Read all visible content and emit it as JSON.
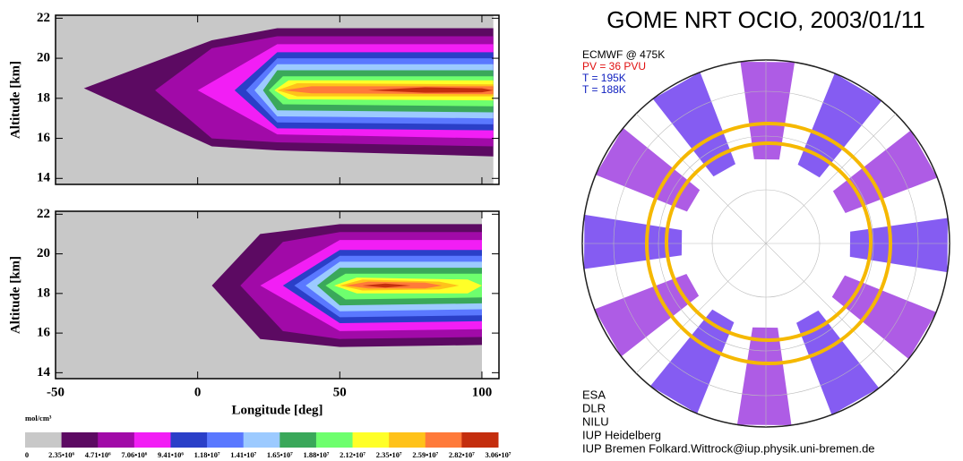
{
  "chart_data": [
    {
      "type": "contour",
      "ylabel": "Altitude [km]",
      "xlim": [
        -50,
        106
      ],
      "ylim": [
        13.7,
        22.15
      ],
      "xticks": [
        -50,
        0,
        50,
        100
      ],
      "xticklabels": false,
      "yticks": [
        14,
        16,
        18,
        20,
        22
      ],
      "contours": [
        {
          "level": 0,
          "points": [
            [
              -50,
              13.7
            ],
            [
              -50,
              22.15
            ],
            [
              104,
              22.15
            ],
            [
              104,
              13.7
            ]
          ]
        },
        {
          "level": 2350000,
          "points": [
            [
              -40,
              18.5
            ],
            [
              5,
              20.9
            ],
            [
              28,
              21.5
            ],
            [
              104,
              21.5
            ],
            [
              104,
              15.1
            ],
            [
              28,
              15.4
            ],
            [
              5,
              15.6
            ]
          ]
        },
        {
          "level": 4710000,
          "points": [
            [
              -15,
              18.4
            ],
            [
              5,
              20.5
            ],
            [
              28,
              21.1
            ],
            [
              104,
              21.1
            ],
            [
              104,
              15.6
            ],
            [
              28,
              15.8
            ],
            [
              5,
              16.0
            ]
          ]
        },
        {
          "level": 7060000,
          "points": [
            [
              0,
              18.4
            ],
            [
              28,
              20.7
            ],
            [
              104,
              20.7
            ],
            [
              104,
              16.0
            ],
            [
              28,
              16.2
            ]
          ]
        },
        {
          "level": 9410000,
          "points": [
            [
              13,
              18.4
            ],
            [
              28,
              20.3
            ],
            [
              104,
              20.3
            ],
            [
              104,
              16.4
            ],
            [
              28,
              16.5
            ]
          ]
        },
        {
          "level": 11800000,
          "points": [
            [
              17,
              18.4
            ],
            [
              28,
              20.0
            ],
            [
              104,
              20.0
            ],
            [
              104,
              16.7
            ],
            [
              28,
              16.8
            ]
          ]
        },
        {
          "level": 14100000,
          "points": [
            [
              20,
              18.4
            ],
            [
              28,
              19.7
            ],
            [
              104,
              19.7
            ],
            [
              104,
              17.0
            ],
            [
              28,
              17.1
            ]
          ]
        },
        {
          "level": 16500000,
          "points": [
            [
              23,
              18.4
            ],
            [
              28,
              19.4
            ],
            [
              104,
              19.4
            ],
            [
              104,
              17.3
            ],
            [
              28,
              17.4
            ]
          ]
        },
        {
          "level": 18800000,
          "points": [
            [
              25,
              18.4
            ],
            [
              30,
              19.1
            ],
            [
              104,
              19.1
            ],
            [
              104,
              17.6
            ],
            [
              30,
              17.7
            ]
          ]
        },
        {
          "level": 21200000,
          "points": [
            [
              27,
              18.4
            ],
            [
              32,
              18.9
            ],
            [
              104,
              18.9
            ],
            [
              104,
              17.9
            ],
            [
              32,
              17.95
            ]
          ]
        },
        {
          "level": 23500000,
          "points": [
            [
              28,
              18.4
            ],
            [
              35,
              18.75
            ],
            [
              104,
              18.7
            ],
            [
              104,
              18.1
            ],
            [
              35,
              18.1
            ]
          ]
        },
        {
          "level": 25900000,
          "points": [
            [
              30,
              18.4
            ],
            [
              40,
              18.6
            ],
            [
              104,
              18.6
            ],
            [
              104,
              18.2
            ],
            [
              40,
              18.25
            ]
          ]
        },
        {
          "level": 28200000,
          "points": [
            [
              60,
              18.4
            ],
            [
              80,
              18.55
            ],
            [
              100,
              18.5
            ],
            [
              104,
              18.4
            ],
            [
              100,
              18.3
            ],
            [
              80,
              18.28
            ]
          ]
        }
      ]
    },
    {
      "type": "contour",
      "ylabel": "Altitude [km]",
      "xlabel": "Longitude [deg]",
      "xlim": [
        -50,
        106
      ],
      "ylim": [
        13.7,
        22.15
      ],
      "xticks": [
        -50,
        0,
        50,
        100
      ],
      "xticklabels": true,
      "yticks": [
        14,
        16,
        18,
        20,
        22
      ],
      "contours": [
        {
          "level": 0,
          "points": [
            [
              -50,
              13.7
            ],
            [
              -50,
              22.15
            ],
            [
              100,
              22.15
            ],
            [
              100,
              13.7
            ]
          ]
        },
        {
          "level": 2350000,
          "points": [
            [
              5,
              18.4
            ],
            [
              22,
              21.0
            ],
            [
              50,
              21.5
            ],
            [
              100,
              21.5
            ],
            [
              100,
              15.4
            ],
            [
              50,
              15.3
            ],
            [
              22,
              15.7
            ]
          ]
        },
        {
          "level": 4710000,
          "points": [
            [
              15,
              18.4
            ],
            [
              30,
              20.6
            ],
            [
              50,
              21.1
            ],
            [
              100,
              21.1
            ],
            [
              100,
              15.8
            ],
            [
              50,
              15.7
            ],
            [
              30,
              16.1
            ]
          ]
        },
        {
          "level": 7060000,
          "points": [
            [
              22,
              18.4
            ],
            [
              50,
              20.7
            ],
            [
              100,
              20.7
            ],
            [
              100,
              16.2
            ],
            [
              50,
              16.1
            ]
          ]
        },
        {
          "level": 9410000,
          "points": [
            [
              30,
              18.4
            ],
            [
              50,
              20.2
            ],
            [
              100,
              20.2
            ],
            [
              100,
              16.6
            ],
            [
              50,
              16.5
            ]
          ]
        },
        {
          "level": 11800000,
          "points": [
            [
              34,
              18.4
            ],
            [
              50,
              19.9
            ],
            [
              100,
              19.9
            ],
            [
              100,
              16.9
            ],
            [
              50,
              16.8
            ]
          ]
        },
        {
          "level": 14100000,
          "points": [
            [
              38,
              18.4
            ],
            [
              50,
              19.6
            ],
            [
              100,
              19.6
            ],
            [
              100,
              17.2
            ],
            [
              50,
              17.1
            ]
          ]
        },
        {
          "level": 16500000,
          "points": [
            [
              42,
              18.4
            ],
            [
              50,
              19.3
            ],
            [
              100,
              19.3
            ],
            [
              100,
              17.5
            ],
            [
              50,
              17.4
            ]
          ]
        },
        {
          "level": 18800000,
          "points": [
            [
              45,
              18.4
            ],
            [
              52,
              19.0
            ],
            [
              100,
              19.0
            ],
            [
              100,
              17.8
            ],
            [
              52,
              17.7
            ]
          ]
        },
        {
          "level": 21200000,
          "points": [
            [
              48,
              18.4
            ],
            [
              56,
              18.8
            ],
            [
              95,
              18.7
            ],
            [
              100,
              18.4
            ],
            [
              95,
              18.0
            ],
            [
              56,
              18.0
            ]
          ]
        },
        {
          "level": 23500000,
          "points": [
            [
              50,
              18.4
            ],
            [
              58,
              18.7
            ],
            [
              85,
              18.6
            ],
            [
              92,
              18.4
            ],
            [
              85,
              18.2
            ],
            [
              58,
              18.15
            ]
          ]
        },
        {
          "level": 25900000,
          "points": [
            [
              52,
              18.4
            ],
            [
              60,
              18.6
            ],
            [
              80,
              18.55
            ],
            [
              86,
              18.4
            ],
            [
              80,
              18.25
            ],
            [
              60,
              18.25
            ]
          ]
        },
        {
          "level": 28200000,
          "points": [
            [
              58,
              18.4
            ],
            [
              66,
              18.5
            ],
            [
              75,
              18.4
            ],
            [
              66,
              18.3
            ]
          ]
        }
      ]
    }
  ],
  "colorbar": {
    "unit": "mol/cm³",
    "colors": [
      "#c8c8c8",
      "#5c0a62",
      "#a10aa8",
      "#f21ef5",
      "#2a3fc8",
      "#5a78ff",
      "#9ccaff",
      "#3aa85a",
      "#6eff6e",
      "#ffff28",
      "#ffc21a",
      "#ff7a3a",
      "#c42e0e"
    ],
    "ticks": [
      0,
      {
        "value": 2350000,
        "label": "2.35•10⁶"
      },
      {
        "value": 4710000,
        "label": "4.71•10⁶"
      },
      {
        "value": 7060000,
        "label": "7.06•10⁶"
      },
      {
        "value": 9410000,
        "label": "9.41•10⁶"
      },
      {
        "value": 11800000,
        "label": "1.18•10⁷"
      },
      {
        "value": 14100000,
        "label": "1.41•10⁷"
      },
      {
        "value": 16500000,
        "label": "1.65•10⁷"
      },
      {
        "value": 18800000,
        "label": "1.88•10⁷"
      },
      {
        "value": 21200000,
        "label": "2.12•10⁷"
      },
      {
        "value": 23500000,
        "label": "2.35•10⁷"
      },
      {
        "value": 25900000,
        "label": "2.59•10⁷"
      },
      {
        "value": 28200000,
        "label": "2.82•10⁷"
      },
      {
        "value": 30600000,
        "label": "3.06•10⁷"
      }
    ]
  },
  "map": {
    "title": "GOME NRT OCIO, 2003/01/11",
    "legend": [
      {
        "text": "ECMWF @ 475K",
        "color": "#000000"
      },
      {
        "text": "PV = 36 PVU",
        "color": "#e01010"
      },
      {
        "text": "T = 195K",
        "color": "#1020c0"
      },
      {
        "text": "T = 188K",
        "color": "#1020c0"
      }
    ],
    "credits": [
      "ESA",
      "DLR",
      "NILU",
      "IUP Heidelberg",
      "IUP Bremen   Folkard.Wittrock@iup.physik.uni-bremen.de"
    ]
  }
}
